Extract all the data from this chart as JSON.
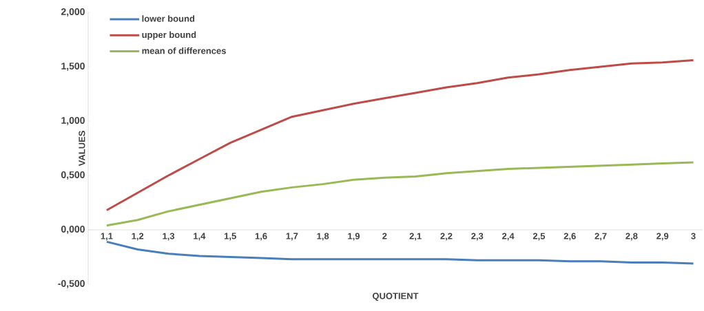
{
  "chart_data": {
    "type": "line",
    "xlabel": "QUOTIENT",
    "ylabel": "VALUES",
    "categories": [
      "1,1",
      "1,2",
      "1,3",
      "1,4",
      "1,5",
      "1,6",
      "1,7",
      "1,8",
      "1,9",
      "2",
      "2,1",
      "2,2",
      "2,3",
      "2,4",
      "2,5",
      "2,6",
      "2,7",
      "2,8",
      "2,9",
      "3"
    ],
    "series": [
      {
        "name": "lower bound",
        "color": "#4a7ebb",
        "values": [
          -0.11,
          -0.18,
          -0.22,
          -0.24,
          -0.25,
          -0.26,
          -0.27,
          -0.27,
          -0.27,
          -0.27,
          -0.27,
          -0.27,
          -0.28,
          -0.28,
          -0.28,
          -0.29,
          -0.29,
          -0.3,
          -0.3,
          -0.31
        ]
      },
      {
        "name": "upper bound",
        "color": "#be4b48",
        "values": [
          0.18,
          0.34,
          0.5,
          0.65,
          0.8,
          0.92,
          1.04,
          1.1,
          1.16,
          1.21,
          1.26,
          1.31,
          1.35,
          1.4,
          1.43,
          1.47,
          1.5,
          1.53,
          1.54,
          1.56
        ]
      },
      {
        "name": "mean of differences",
        "color": "#98b954",
        "values": [
          0.04,
          0.09,
          0.17,
          0.23,
          0.29,
          0.35,
          0.39,
          0.42,
          0.46,
          0.48,
          0.49,
          0.52,
          0.54,
          0.56,
          0.57,
          0.58,
          0.59,
          0.6,
          0.61,
          0.62
        ]
      }
    ],
    "ylim": [
      -0.5,
      2.0
    ],
    "yticks": [
      {
        "value": -0.5,
        "label": "-0,500"
      },
      {
        "value": 0,
        "label": "0,000"
      },
      {
        "value": 0.5,
        "label": "0,500"
      },
      {
        "value": 1.0,
        "label": "1,000"
      },
      {
        "value": 1.5,
        "label": "1,500"
      },
      {
        "value": 2.0,
        "label": "2,000"
      }
    ],
    "grid": false,
    "legend": "top left",
    "marker": "none",
    "line_style": "solid"
  }
}
